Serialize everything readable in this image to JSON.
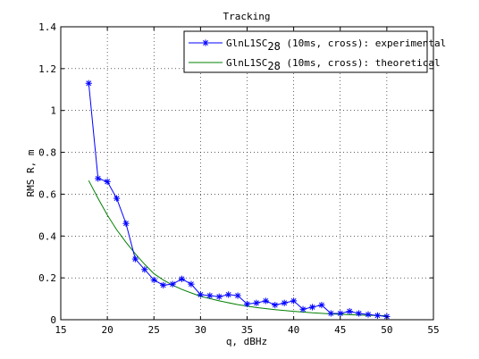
{
  "chart_data": {
    "type": "line",
    "title": "Tracking",
    "xlabel": "q, dBHz",
    "ylabel": "RMS R, m",
    "xlim": [
      15,
      55
    ],
    "ylim": [
      0,
      1.4
    ],
    "xticks": [
      "15",
      "20",
      "25",
      "30",
      "35",
      "40",
      "45",
      "50",
      "55"
    ],
    "yticks": [
      "0",
      "0.2",
      "0.4",
      "0.6",
      "0.8",
      "1",
      "1.2",
      "1.4"
    ],
    "xtick_values": [
      15,
      20,
      25,
      30,
      35,
      40,
      45,
      50,
      55
    ],
    "ytick_values": [
      0,
      0.2,
      0.4,
      0.6,
      0.8,
      1,
      1.2,
      1.4
    ],
    "grid": true,
    "legend_position": "top-right",
    "series": [
      {
        "name": "GlnL1SC28 (10ms, cross): experimental",
        "legend_base": "GlnL1SC",
        "legend_sub": "28",
        "legend_rest": " (10ms, cross): experimental",
        "color": "#0000ff",
        "marker": "asterisk",
        "x": [
          18,
          19,
          20,
          21,
          22,
          23,
          24,
          25,
          26,
          27,
          28,
          29,
          30,
          31,
          32,
          33,
          34,
          35,
          36,
          37,
          38,
          39,
          40,
          41,
          42,
          43,
          44,
          45,
          46,
          47,
          48,
          49,
          50
        ],
        "y": [
          1.13,
          0.675,
          0.66,
          0.58,
          0.46,
          0.29,
          0.24,
          0.19,
          0.165,
          0.17,
          0.195,
          0.17,
          0.12,
          0.115,
          0.11,
          0.12,
          0.115,
          0.075,
          0.08,
          0.09,
          0.07,
          0.08,
          0.09,
          0.05,
          0.06,
          0.07,
          0.03,
          0.03,
          0.04,
          0.03,
          0.025,
          0.02,
          0.015
        ]
      },
      {
        "name": "GlnL1SC28 (10ms, cross): theoretical",
        "legend_base": "GlnL1SC",
        "legend_sub": "28",
        "legend_rest": " (10ms, cross): theoretical",
        "color": "#008000",
        "marker": "none",
        "x": [
          18,
          19,
          20,
          21,
          22,
          23,
          24,
          25,
          26,
          27,
          28,
          29,
          30,
          32,
          34,
          36,
          38,
          40,
          42,
          44,
          46,
          48,
          50
        ],
        "y": [
          0.665,
          0.58,
          0.5,
          0.43,
          0.37,
          0.315,
          0.265,
          0.22,
          0.19,
          0.165,
          0.145,
          0.128,
          0.112,
          0.09,
          0.072,
          0.058,
          0.048,
          0.04,
          0.033,
          0.028,
          0.024,
          0.021,
          0.019
        ]
      }
    ]
  }
}
